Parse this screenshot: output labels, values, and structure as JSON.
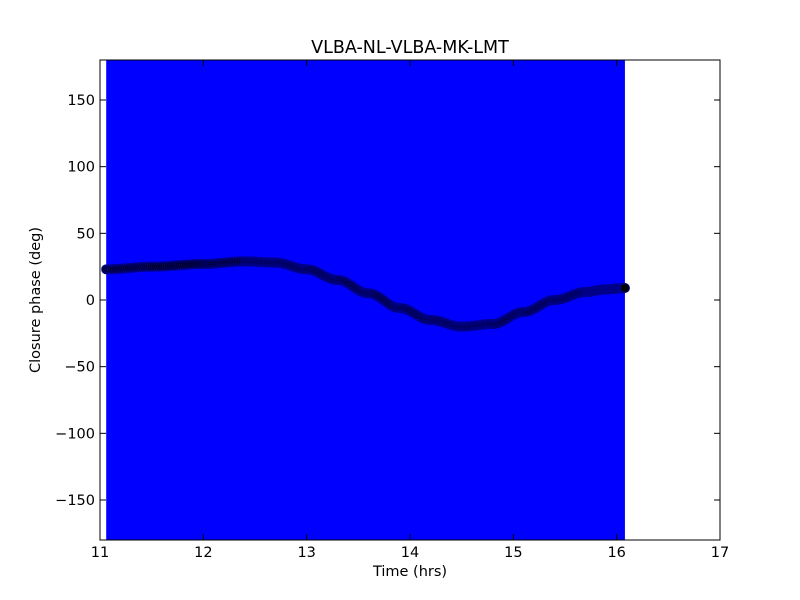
{
  "chart_data": {
    "type": "scatter",
    "title": "VLBA-NL-VLBA-MK-LMT",
    "xlabel": "Time (hrs)",
    "ylabel": "Closure phase (deg)",
    "xlim": [
      11,
      17
    ],
    "ylim": [
      -180,
      180
    ],
    "xticks": [
      11,
      12,
      13,
      14,
      15,
      16,
      17
    ],
    "xtick_labels": [
      "11",
      "12",
      "13",
      "14",
      "15",
      "16",
      "17"
    ],
    "yticks": [
      150,
      100,
      50,
      0,
      -50,
      -100,
      -150
    ],
    "ytick_labels": [
      "150",
      "100",
      "50",
      "0",
      "−50",
      "−100",
      "−150"
    ],
    "grid": false,
    "error_band": {
      "color": "#0000ff",
      "x_start": 11.06,
      "x_end": 16.08,
      "y_low": -180,
      "y_high": 180
    },
    "series": [
      {
        "color": "#000000",
        "edge_color": "#00008b",
        "marker": "circle",
        "x": [
          11.06,
          11.5,
          12.0,
          12.4,
          12.7,
          13.0,
          13.3,
          13.6,
          13.9,
          14.2,
          14.5,
          14.8,
          15.1,
          15.4,
          15.7,
          15.9,
          16.08
        ],
        "y": [
          23,
          25,
          27,
          29,
          28,
          23,
          15,
          5,
          -6,
          -15,
          -20,
          -18,
          -9,
          0,
          6,
          8,
          9
        ]
      }
    ]
  }
}
